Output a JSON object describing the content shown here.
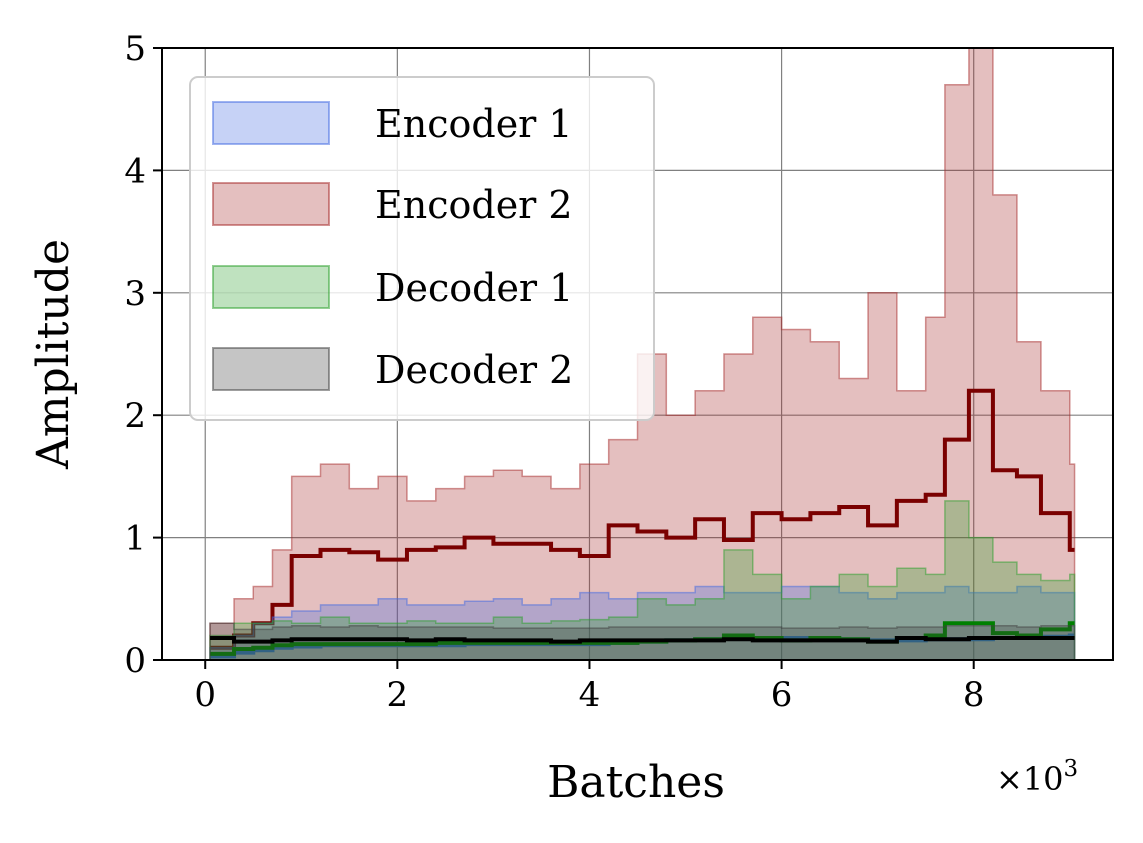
{
  "chart_data": {
    "type": "line",
    "xlabel": "Batches",
    "ylabel": "Amplitude",
    "x_multiplier_label": "×10",
    "x_multiplier_exponent": "3",
    "xlim": [
      -0.45,
      9.45
    ],
    "ylim": [
      0,
      5
    ],
    "xticks": [
      0,
      2,
      4,
      6,
      8
    ],
    "xtick_labels": [
      "0",
      "2",
      "4",
      "6",
      "8"
    ],
    "yticks": [
      0,
      1,
      2,
      3,
      4,
      5
    ],
    "ytick_labels": [
      "0",
      "1",
      "2",
      "3",
      "4",
      "5"
    ],
    "grid": true,
    "legend_position": "top-left",
    "x": [
      0.05,
      0.3,
      0.5,
      0.7,
      0.9,
      1.2,
      1.5,
      1.8,
      2.1,
      2.4,
      2.7,
      3.0,
      3.3,
      3.6,
      3.9,
      4.2,
      4.5,
      4.8,
      5.1,
      5.4,
      5.7,
      6.0,
      6.3,
      6.6,
      6.9,
      7.2,
      7.5,
      7.7,
      7.95,
      8.2,
      8.45,
      8.7,
      9.0
    ],
    "series": [
      {
        "name": "Encoder 1",
        "fill_color": "#4169e1",
        "line_color": "#2e5fd6",
        "mean": [
          0.03,
          0.06,
          0.08,
          0.1,
          0.11,
          0.12,
          0.12,
          0.12,
          0.12,
          0.12,
          0.13,
          0.13,
          0.13,
          0.13,
          0.13,
          0.14,
          0.15,
          0.16,
          0.17,
          0.18,
          0.18,
          0.18,
          0.18,
          0.17,
          0.16,
          0.16,
          0.17,
          0.17,
          0.17,
          0.18,
          0.18,
          0.19,
          0.2
        ],
        "upper": [
          0.1,
          0.2,
          0.3,
          0.35,
          0.4,
          0.45,
          0.45,
          0.5,
          0.45,
          0.45,
          0.48,
          0.5,
          0.45,
          0.5,
          0.55,
          0.5,
          0.55,
          0.55,
          0.6,
          0.55,
          0.55,
          0.6,
          0.6,
          0.55,
          0.5,
          0.55,
          0.55,
          0.6,
          0.55,
          0.55,
          0.6,
          0.55,
          0.55
        ]
      },
      {
        "name": "Encoder 2",
        "fill_color": "#a52a2a",
        "line_color": "#7a0000",
        "mean": [
          0.1,
          0.2,
          0.3,
          0.45,
          0.85,
          0.9,
          0.88,
          0.82,
          0.9,
          0.92,
          1.0,
          0.95,
          0.95,
          0.9,
          0.85,
          1.1,
          1.05,
          1.0,
          1.15,
          0.98,
          1.2,
          1.15,
          1.2,
          1.25,
          1.1,
          1.3,
          1.35,
          1.8,
          2.2,
          1.55,
          1.5,
          1.2,
          0.9
        ],
        "upper": [
          0.3,
          0.5,
          0.6,
          0.9,
          1.5,
          1.6,
          1.4,
          1.5,
          1.3,
          1.4,
          1.5,
          1.55,
          1.5,
          1.4,
          1.6,
          1.8,
          2.5,
          2.0,
          2.2,
          2.5,
          2.8,
          2.7,
          2.6,
          2.3,
          3.0,
          2.2,
          2.8,
          4.7,
          5.0,
          3.8,
          2.6,
          2.2,
          1.6
        ]
      },
      {
        "name": "Decoder 1",
        "fill_color": "#2ca02c",
        "line_color": "#008000",
        "mean": [
          0.05,
          0.09,
          0.1,
          0.12,
          0.13,
          0.13,
          0.13,
          0.13,
          0.13,
          0.14,
          0.14,
          0.14,
          0.14,
          0.14,
          0.14,
          0.14,
          0.15,
          0.16,
          0.17,
          0.2,
          0.18,
          0.16,
          0.18,
          0.17,
          0.15,
          0.18,
          0.2,
          0.3,
          0.3,
          0.22,
          0.2,
          0.25,
          0.3
        ],
        "upper": [
          0.2,
          0.3,
          0.3,
          0.32,
          0.3,
          0.35,
          0.3,
          0.3,
          0.32,
          0.3,
          0.3,
          0.35,
          0.3,
          0.32,
          0.33,
          0.35,
          0.5,
          0.45,
          0.5,
          0.9,
          0.7,
          0.5,
          0.6,
          0.7,
          0.6,
          0.75,
          0.7,
          1.3,
          1.0,
          0.8,
          0.7,
          0.65,
          0.7
        ]
      },
      {
        "name": "Decoder 2",
        "fill_color": "#404040",
        "line_color": "#000000",
        "mean": [
          0.18,
          0.15,
          0.15,
          0.16,
          0.17,
          0.17,
          0.17,
          0.17,
          0.16,
          0.17,
          0.16,
          0.16,
          0.16,
          0.15,
          0.16,
          0.16,
          0.16,
          0.16,
          0.16,
          0.17,
          0.16,
          0.16,
          0.16,
          0.16,
          0.15,
          0.18,
          0.17,
          0.17,
          0.18,
          0.18,
          0.18,
          0.18,
          0.18
        ],
        "upper": [
          0.3,
          0.25,
          0.25,
          0.27,
          0.28,
          0.27,
          0.28,
          0.27,
          0.27,
          0.27,
          0.27,
          0.26,
          0.26,
          0.26,
          0.26,
          0.27,
          0.27,
          0.27,
          0.27,
          0.27,
          0.27,
          0.26,
          0.26,
          0.27,
          0.26,
          0.27,
          0.27,
          0.28,
          0.28,
          0.28,
          0.27,
          0.28,
          0.28
        ]
      }
    ]
  }
}
